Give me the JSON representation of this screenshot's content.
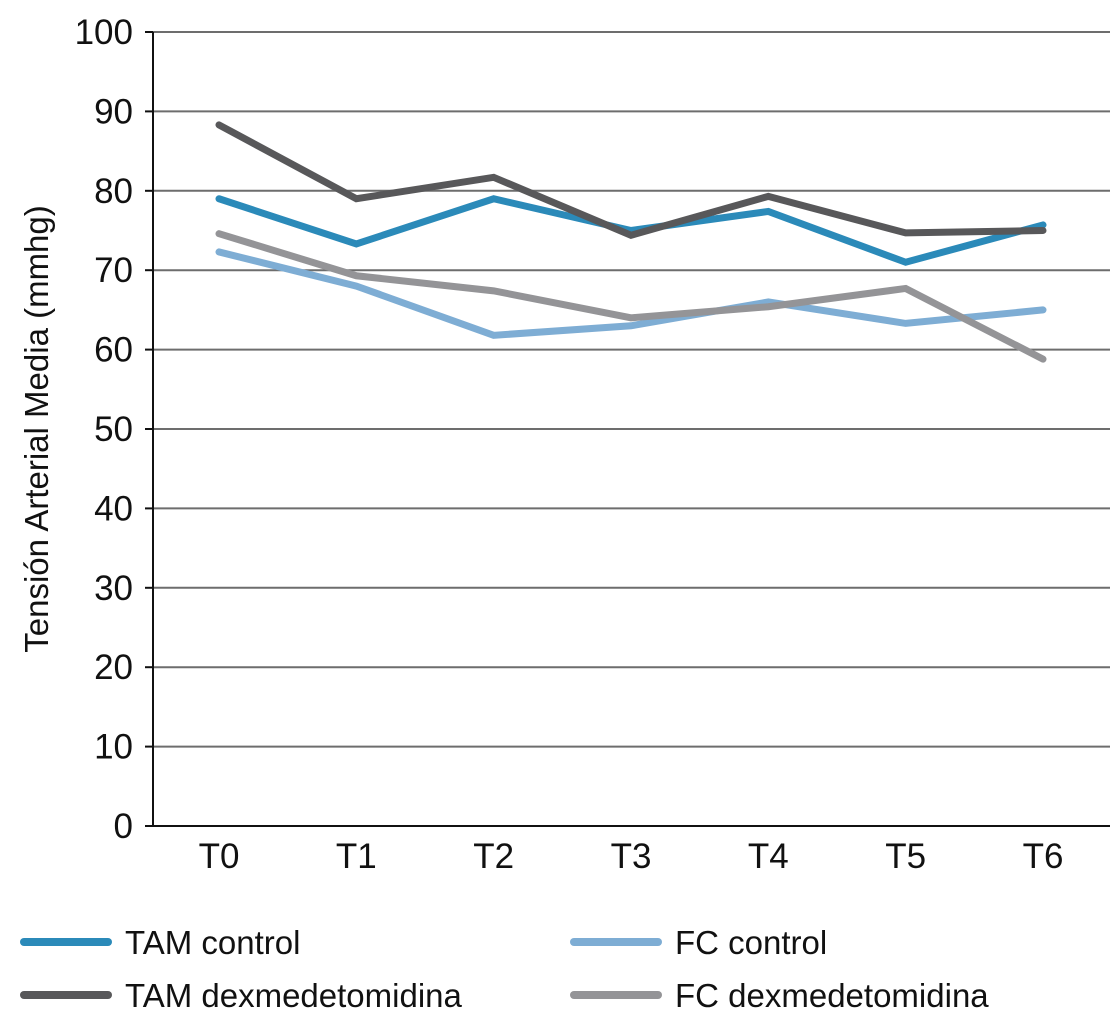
{
  "chart_data": {
    "type": "line",
    "title": "",
    "xlabel": "",
    "ylabel": "Tensión Arterial Media (mmhg)",
    "categories": [
      "T0",
      "T1",
      "T2",
      "T3",
      "T4",
      "T5",
      "T6"
    ],
    "ylim": [
      0,
      100
    ],
    "yticks": [
      0,
      10,
      20,
      30,
      40,
      50,
      60,
      70,
      80,
      90,
      100
    ],
    "grid": true,
    "legend_position": "bottom",
    "series": [
      {
        "name": "TAM control",
        "color": "#2b8ab9",
        "values": [
          79,
          73.3,
          79,
          75,
          77.4,
          71,
          75.7
        ]
      },
      {
        "name": "FC control",
        "color": "#7eadd4",
        "values": [
          72.3,
          68,
          61.8,
          63,
          66,
          63.3,
          65
        ]
      },
      {
        "name": "TAM dexmedetomidina",
        "color": "#58585a",
        "values": [
          88.3,
          79,
          81.7,
          74.4,
          79.3,
          74.7,
          75
        ]
      },
      {
        "name": "FC dexmedetomidina",
        "color": "#949497",
        "values": [
          74.6,
          69.3,
          67.4,
          64,
          65.4,
          67.7,
          58.8
        ]
      }
    ]
  }
}
